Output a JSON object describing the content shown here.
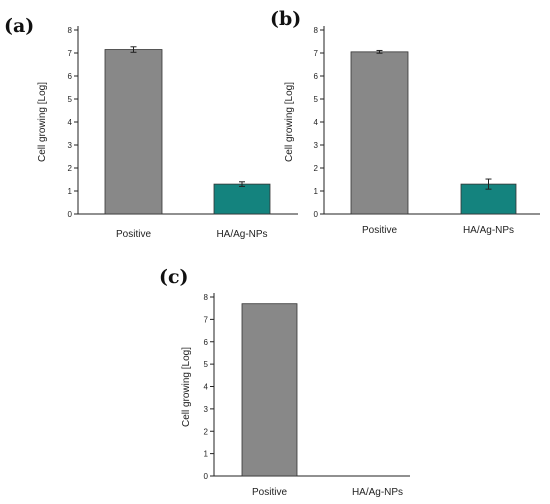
{
  "chart_data": [
    {
      "id": "a",
      "type": "bar",
      "panel_label": "(a)",
      "categories": [
        "Positive",
        "HA/Ag-NPs"
      ],
      "values": [
        7.15,
        1.3
      ],
      "errors": [
        0.12,
        0.1
      ],
      "colors": [
        "#888888",
        "#14837e"
      ],
      "ylabel": "Cell growing [Log]",
      "ylim": [
        0,
        8
      ],
      "yticks": [
        0,
        1,
        2,
        3,
        4,
        5,
        6,
        7,
        8
      ],
      "grid": false,
      "legend": "none"
    },
    {
      "id": "b",
      "type": "bar",
      "panel_label": "(b)",
      "categories": [
        "Positive",
        "HA/Ag-NPs"
      ],
      "values": [
        7.05,
        1.3
      ],
      "errors": [
        0.06,
        0.22
      ],
      "colors": [
        "#888888",
        "#14837e"
      ],
      "ylabel": "Cell growing [Log]",
      "ylim": [
        0,
        8
      ],
      "yticks": [
        0,
        1,
        2,
        3,
        4,
        5,
        6,
        7,
        8
      ],
      "grid": false,
      "legend": "none"
    },
    {
      "id": "c",
      "type": "bar",
      "panel_label": "(c)",
      "categories": [
        "Positive",
        "HA/Ag-NPs"
      ],
      "values": [
        7.7,
        0
      ],
      "errors": [
        0,
        0
      ],
      "colors": [
        "#888888",
        "#14837e"
      ],
      "ylabel": "Cell growing [Log]",
      "ylim": [
        0,
        8
      ],
      "yticks": [
        0,
        1,
        2,
        3,
        4,
        5,
        6,
        7,
        8
      ],
      "grid": false,
      "legend": "none"
    }
  ]
}
